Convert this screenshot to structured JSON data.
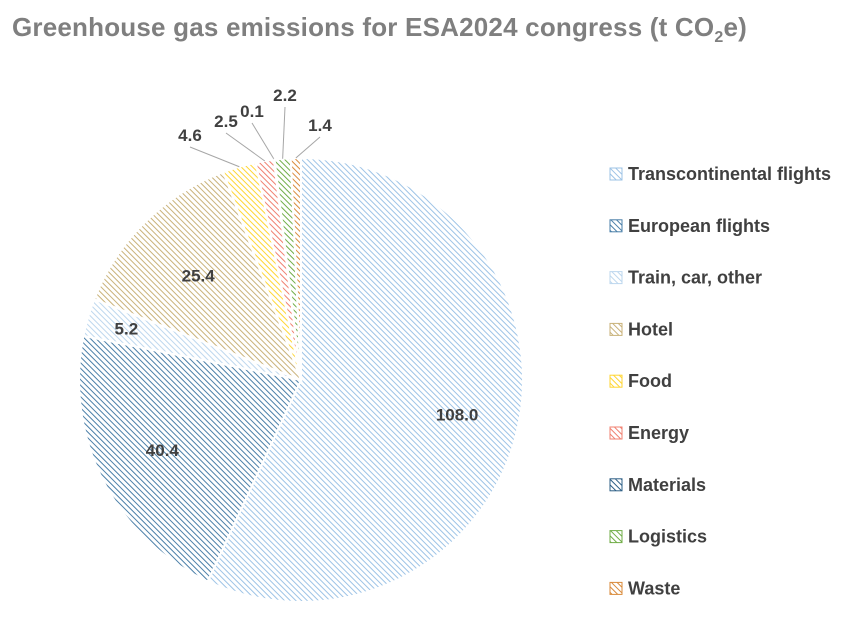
{
  "chart_data": {
    "type": "pie",
    "title": {
      "main": "Greenhouse gas emissions for ESA2024 congress (t CO",
      "sub": "2",
      "end": "e)"
    },
    "categories": [
      "Transcontinental flights",
      "European flights",
      "Train, car, other",
      "Hotel",
      "Food",
      "Energy",
      "Materials",
      "Logistics",
      "Waste"
    ],
    "values": [
      108.0,
      40.4,
      5.2,
      25.4,
      4.6,
      2.5,
      0.1,
      2.2,
      1.4
    ],
    "value_labels": [
      "108.0",
      "40.4",
      "5.2",
      "25.4",
      "4.6",
      "2.5",
      "0.1",
      "2.2",
      "1.4"
    ],
    "colors": [
      "#9dc3e6",
      "#4a7fa8",
      "#bdd7ee",
      "#c9b27a",
      "#ffd633",
      "#f08070",
      "#2e5f86",
      "#70ad47",
      "#d98a3a"
    ],
    "legend_position": "right",
    "grid": false
  }
}
